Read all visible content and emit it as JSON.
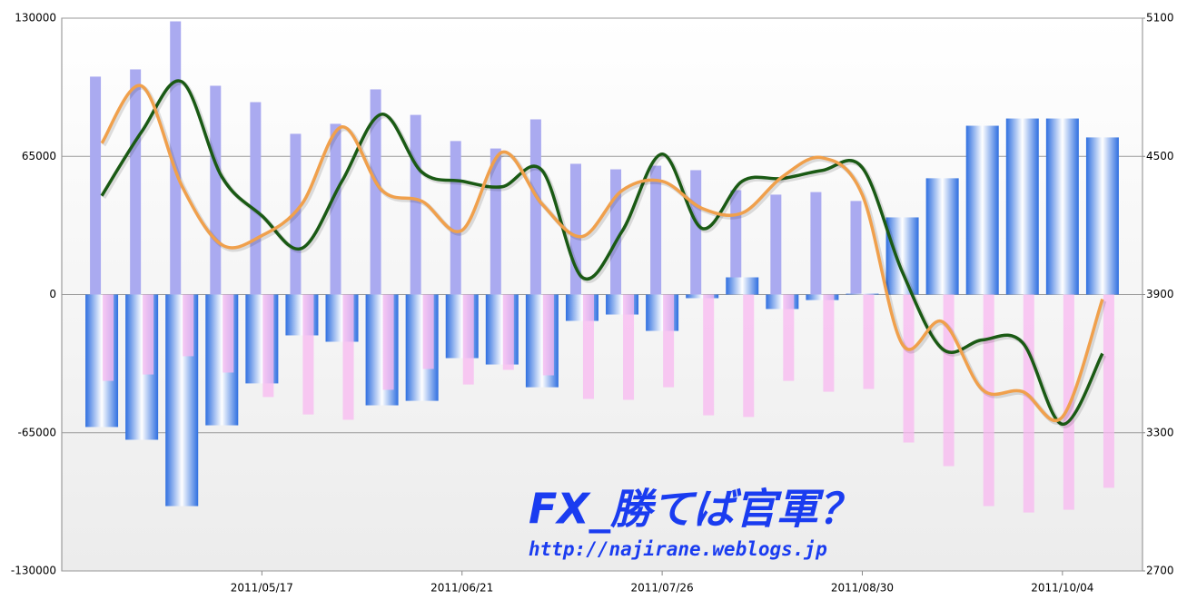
{
  "chart_data": {
    "type": "bar",
    "categories": [
      null,
      null,
      null,
      null,
      "2011/05/17",
      null,
      null,
      null,
      null,
      "2011/06/21",
      null,
      null,
      null,
      null,
      "2011/07/26",
      null,
      null,
      null,
      null,
      "2011/08/30",
      null,
      null,
      null,
      null,
      "2011/10/04",
      null
    ],
    "ylim": [
      -130000,
      130000
    ],
    "yticks": [
      -130000,
      -65000,
      0,
      65000,
      130000
    ],
    "y2lim": [
      2700,
      5100
    ],
    "y2ticks": [
      2700,
      3300,
      3900,
      4500,
      5100
    ],
    "grid": true,
    "series": [
      {
        "type": "bar",
        "color": "#aaaaf0",
        "values": [
          102500,
          105900,
          128500,
          98200,
          90500,
          75600,
          80300,
          96500,
          84500,
          72200,
          68700,
          82400,
          61500,
          58900,
          60600,
          58500,
          49100,
          47000,
          48200,
          44000,
          32900,
          25600,
          20100,
          19200,
          17900,
          17100
        ]
      },
      {
        "type": "bar",
        "color": "#f8b8f0",
        "values": [
          -40600,
          -37600,
          -29000,
          -36700,
          -48200,
          -56400,
          -58900,
          -44800,
          -35000,
          -42300,
          -35400,
          -38000,
          -49100,
          -49500,
          -43600,
          -56800,
          -57600,
          -40600,
          -45700,
          -44400,
          -69600,
          -80700,
          -99500,
          -102500,
          -101200,
          -90900
        ]
      },
      {
        "type": "bar",
        "color": "#2f7de8",
        "values": [
          -62300,
          -68300,
          -99500,
          -61500,
          -41800,
          -19200,
          -22200,
          -52100,
          -50000,
          -29900,
          -32900,
          -43600,
          -12400,
          -9400,
          -17100,
          -1700,
          8100,
          -6800,
          -2600,
          400,
          36300,
          54700,
          79400,
          82800,
          82800,
          73900
        ]
      },
      {
        "type": "line",
        "axis": "y2",
        "color": "#1a5a14",
        "values": [
          4329,
          4608,
          4824,
          4411,
          4242,
          4101,
          4392,
          4683,
          4431,
          4392,
          4368,
          4439,
          3975,
          4175,
          4510,
          4187,
          4392,
          4404,
          4439,
          4451,
          3998,
          3664,
          3703,
          3692,
          3337,
          3644
        ]
      },
      {
        "type": "line",
        "axis": "y2",
        "color": "#f0a04c",
        "values": [
          4557,
          4805,
          4372,
          4116,
          4156,
          4293,
          4628,
          4352,
          4305,
          4179,
          4518,
          4293,
          4152,
          4352,
          4392,
          4274,
          4254,
          4411,
          4494,
          4333,
          3684,
          3782,
          3487,
          3479,
          3369,
          3880
        ]
      }
    ],
    "annotations": [
      "FX_勝てば官軍？",
      "http://najirane.weblogs.jp"
    ]
  }
}
